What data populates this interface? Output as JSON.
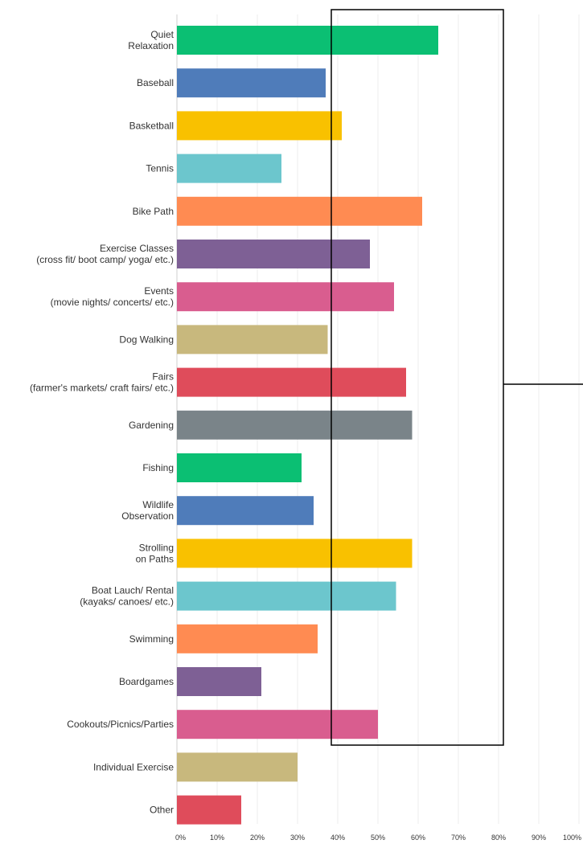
{
  "chart_data": {
    "type": "bar",
    "orientation": "horizontal",
    "title": "",
    "xlabel": "",
    "ylabel": "",
    "xlim": [
      0,
      100
    ],
    "grid": true,
    "categories": [
      [
        "Quiet",
        "Relaxation"
      ],
      [
        "Baseball"
      ],
      [
        "Basketball"
      ],
      [
        "Tennis"
      ],
      [
        "Bike Path"
      ],
      [
        "Exercise Classes",
        "(cross fit/ boot camp/ yoga/ etc.)"
      ],
      [
        "Events",
        "(movie nights/ concerts/ etc.)"
      ],
      [
        "Dog Walking"
      ],
      [
        "Fairs",
        "(farmer's markets/ craft fairs/ etc.)"
      ],
      [
        "Gardening"
      ],
      [
        "Fishing"
      ],
      [
        "Wildlife",
        "Observation"
      ],
      [
        "Strolling",
        "on Paths"
      ],
      [
        "Boat Lauch/ Rental",
        "(kayaks/ canoes/ etc.)"
      ],
      [
        "Swimming"
      ],
      [
        "Boardgames"
      ],
      [
        "Cookouts/Picnics/Parties"
      ],
      [
        "Individual Exercise"
      ],
      [
        "Other"
      ]
    ],
    "values": [
      65,
      37,
      41,
      26,
      61,
      48,
      54,
      37.5,
      57,
      58.5,
      31,
      34,
      58.5,
      54.5,
      35,
      21,
      50,
      30,
      16
    ],
    "colors": [
      "#0bbf73",
      "#4f7cba",
      "#f9c100",
      "#6cc6cd",
      "#ff8b52",
      "#7e6095",
      "#d95d8f",
      "#c8b87d",
      "#df4c5b",
      "#7a8489",
      "#0bbf73",
      "#4f7cba",
      "#f9c100",
      "#6cc6cd",
      "#ff8b52",
      "#7e6095",
      "#d95d8f",
      "#c8b87d",
      "#df4c5b"
    ],
    "x_ticks": [
      "0%",
      "10%",
      "20%",
      "30%",
      "40%",
      "50%",
      "60%",
      "70%",
      "80%",
      "90%",
      "100%"
    ],
    "overlay": "rectangle outline with a connector line to the right edge"
  }
}
